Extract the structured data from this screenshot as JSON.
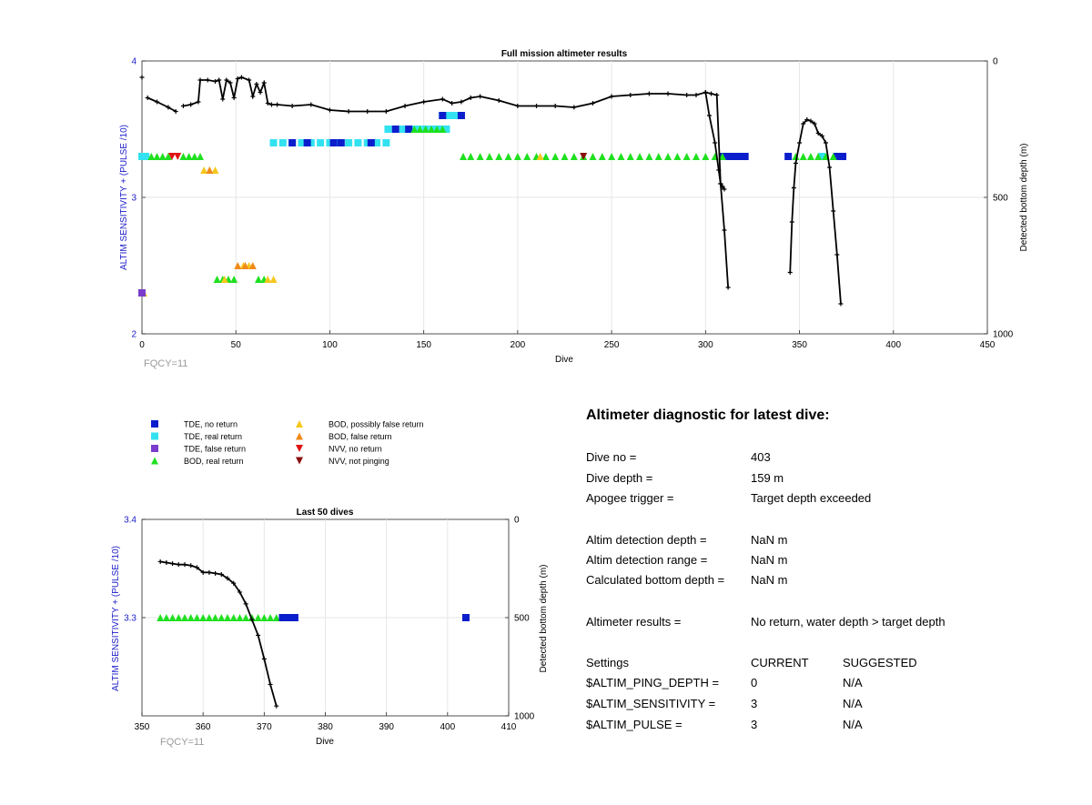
{
  "colors": {
    "tde_no_return": "#0b1ecc",
    "tde_real_return": "#33e2f0",
    "tde_false_return": "#7a3ccc",
    "bod_real_return": "#1fe01f",
    "bod_possibly_false": "#f5c81e",
    "bod_false_return": "#f08a1a",
    "nvv_no_return": "#e01414",
    "nvv_not_pinging": "#8a0f0f",
    "axis_left": "#1a1ac8",
    "line": "#000000",
    "grid": "#e6e6e6",
    "muted": "#9a9a9a"
  },
  "legend": {
    "items": [
      {
        "label": "TDE, no return",
        "marker": "square",
        "color_key": "tde_no_return"
      },
      {
        "label": "TDE, real return",
        "marker": "square",
        "color_key": "tde_real_return"
      },
      {
        "label": "TDE, false return",
        "marker": "square",
        "color_key": "tde_false_return"
      },
      {
        "label": "BOD, real return",
        "marker": "triangle-up",
        "color_key": "bod_real_return"
      },
      {
        "label": "BOD, possibly false return",
        "marker": "triangle-up",
        "color_key": "bod_possibly_false"
      },
      {
        "label": "BOD, false return",
        "marker": "triangle-up",
        "color_key": "bod_false_return"
      },
      {
        "label": "NVV, no return",
        "marker": "triangle-down",
        "color_key": "nvv_no_return"
      },
      {
        "label": "NVV, not pinging",
        "marker": "triangle-down",
        "color_key": "nvv_not_pinging"
      }
    ]
  },
  "diagnostic": {
    "title": "Altimeter diagnostic for latest dive:",
    "rows": [
      {
        "label": "Dive no =",
        "value": "403"
      },
      {
        "label": "Dive depth =",
        "value": "159 m"
      },
      {
        "label": "Apogee trigger =",
        "value": "Target depth exceeded"
      },
      {
        "label": "Altim detection depth =",
        "value": "NaN m"
      },
      {
        "label": "Altim detection range =",
        "value": "NaN m"
      },
      {
        "label": "Calculated bottom depth =",
        "value": "NaN m"
      },
      {
        "label": "Altimeter results =",
        "value": "No return, water depth > target depth"
      }
    ],
    "settings_header": {
      "label": "Settings",
      "current": "CURRENT",
      "suggested": "SUGGESTED"
    },
    "settings": [
      {
        "label": "$ALTIM_PING_DEPTH =",
        "current": "0",
        "suggested": "N/A"
      },
      {
        "label": "$ALTIM_SENSITIVITY =",
        "current": "3",
        "suggested": "N/A"
      },
      {
        "label": "$ALTIM_PULSE =",
        "current": "3",
        "suggested": "N/A"
      }
    ]
  },
  "chart_data": [
    {
      "type": "scatter",
      "title": "Full mission altimeter results",
      "xlabel": "Dive",
      "ylabel": "ALTIM SENSITIVITY + (PULSE /10)",
      "y2label": "Detected bottom depth (m)",
      "xlim": [
        0,
        450
      ],
      "ylim": [
        2,
        4
      ],
      "y2lim": [
        1000,
        0
      ],
      "xticks": [
        0,
        50,
        100,
        150,
        200,
        250,
        300,
        350,
        400,
        450
      ],
      "xtick_labels": [
        "0",
        "50",
        "100",
        "150",
        "200",
        "250",
        "300",
        "350",
        "400",
        "450"
      ],
      "yticks": [
        2,
        3,
        4
      ],
      "ytick_labels": [
        "2",
        "3",
        "4"
      ],
      "y2ticks": [
        0,
        500,
        1000
      ],
      "y2tick_labels": [
        "0",
        "500",
        "1000"
      ],
      "grid": true,
      "note": "FQCY=11",
      "bottom_depth": [
        {
          "x": [
            0
          ],
          "y": [
            60
          ]
        },
        {
          "x": [
            3,
            8,
            14,
            18
          ],
          "y": [
            135,
            150,
            170,
            185
          ]
        },
        {
          "x": [
            22,
            26,
            30,
            31,
            35,
            39,
            41,
            43,
            45,
            47,
            49,
            51,
            53,
            57,
            59,
            61,
            63,
            65,
            67,
            69,
            72,
            80,
            90,
            100,
            110,
            120,
            130,
            140,
            150,
            160,
            165,
            170,
            175,
            180,
            190,
            200,
            210,
            220,
            230,
            240,
            250,
            260,
            270,
            280,
            290,
            295,
            300,
            303,
            306,
            308,
            310,
            312
          ],
          "y": [
            165,
            160,
            150,
            70,
            70,
            75,
            70,
            140,
            70,
            80,
            135,
            65,
            60,
            70,
            130,
            85,
            115,
            80,
            155,
            160,
            160,
            165,
            160,
            180,
            185,
            185,
            185,
            165,
            150,
            140,
            155,
            150,
            135,
            130,
            145,
            165,
            165,
            165,
            170,
            155,
            130,
            125,
            120,
            120,
            125,
            125,
            115,
            120,
            125,
            450,
            620,
            830
          ]
        },
        {
          "x": [
            300,
            302,
            305,
            307,
            308,
            309,
            310
          ],
          "y": [
            115,
            200,
            300,
            400,
            450,
            460,
            470
          ]
        },
        {
          "x": [
            345,
            346,
            347,
            348,
            350,
            352,
            354,
            356,
            358,
            360,
            362,
            364,
            366,
            368,
            370,
            372
          ],
          "y": [
            775,
            590,
            465,
            375,
            300,
            230,
            215,
            220,
            230,
            265,
            275,
            300,
            390,
            550,
            710,
            890
          ]
        }
      ],
      "markers": [
        {
          "kind": "tde_real_return",
          "x": [
            0,
            1,
            2
          ],
          "y": 3.3
        },
        {
          "kind": "tde_real_return",
          "x": [
            70,
            75,
            80,
            85,
            90,
            95,
            100,
            105,
            110,
            115,
            120,
            125,
            130
          ],
          "y": 3.4
        },
        {
          "kind": "tde_no_return",
          "x": [
            80,
            88,
            102,
            106,
            122
          ],
          "y": 3.4
        },
        {
          "kind": "tde_real_return",
          "x": [
            131,
            135,
            139,
            143,
            147,
            151,
            155,
            159,
            162
          ],
          "y": 3.5
        },
        {
          "kind": "tde_no_return",
          "x": [
            135,
            142
          ],
          "y": 3.5
        },
        {
          "kind": "tde_real_return",
          "x": [
            160,
            163,
            166,
            169
          ],
          "y": 3.6
        },
        {
          "kind": "tde_no_return",
          "x": [
            160,
            170
          ],
          "y": 3.6
        },
        {
          "kind": "tde_real_return",
          "x": [
            362
          ],
          "y": 3.3
        },
        {
          "kind": "tde_no_return",
          "x": [
            309,
            312,
            315,
            318,
            321,
            344,
            370,
            373
          ],
          "y": 3.3
        },
        {
          "kind": "bod_real_return",
          "x": [
            5,
            8,
            11,
            14,
            22,
            25,
            28,
            31
          ],
          "y": 3.3
        },
        {
          "kind": "bod_real_return",
          "x": [
            145,
            148,
            151,
            154,
            157,
            160
          ],
          "y": 3.5
        },
        {
          "kind": "bod_real_return",
          "x": [
            171,
            175,
            180,
            185,
            190,
            195,
            200,
            205,
            210,
            215,
            220,
            225,
            230,
            235,
            240,
            245,
            250,
            255,
            260,
            265,
            270,
            275,
            280,
            285,
            290,
            295,
            300,
            305,
            309
          ],
          "y": 3.3
        },
        {
          "kind": "bod_real_return",
          "x": [
            348,
            352,
            356,
            360,
            364,
            368
          ],
          "y": 3.3
        },
        {
          "kind": "bod_real_return",
          "x": [
            40,
            43,
            46,
            49,
            62,
            65
          ],
          "y": 2.4
        },
        {
          "kind": "bod_possibly_false",
          "x": [
            1
          ],
          "y": 2.3
        },
        {
          "kind": "bod_possibly_false",
          "x": [
            33,
            36,
            39
          ],
          "y": 3.2
        },
        {
          "kind": "bod_possibly_false",
          "x": [
            44,
            67,
            70
          ],
          "y": 2.4
        },
        {
          "kind": "bod_possibly_false",
          "x": [
            54,
            57
          ],
          "y": 2.5
        },
        {
          "kind": "bod_possibly_false",
          "x": [
            212
          ],
          "y": 3.3
        },
        {
          "kind": "bod_false_return",
          "x": [
            51,
            55,
            59
          ],
          "y": 2.5
        },
        {
          "kind": "bod_false_return",
          "x": [
            36
          ],
          "y": 3.2
        },
        {
          "kind": "nvv_no_return",
          "x": [
            16,
            19
          ],
          "y": 3.3
        },
        {
          "kind": "nvv_not_pinging",
          "x": [
            235
          ],
          "y": 3.3
        },
        {
          "kind": "tde_false_return",
          "x": [
            0
          ],
          "y": 2.3
        }
      ]
    },
    {
      "type": "scatter",
      "title": "Last 50 dives",
      "xlabel": "Dive",
      "ylabel": "ALTIM SENSITIVITY + (PULSE /10)",
      "y2label": "Detected bottom depth (m)",
      "xlim": [
        350,
        410
      ],
      "ylim": [
        3.2,
        3.4
      ],
      "y2lim": [
        1000,
        0
      ],
      "xticks": [
        350,
        360,
        370,
        380,
        390,
        400,
        410
      ],
      "xtick_labels": [
        "350",
        "360",
        "370",
        "380",
        "390",
        "400",
        "410"
      ],
      "yticks": [
        3.3,
        3.4
      ],
      "ytick_labels": [
        "3.3",
        "3.4"
      ],
      "y2ticks": [
        0,
        500,
        1000
      ],
      "y2tick_labels": [
        "0",
        "500",
        "1000"
      ],
      "grid": true,
      "note": "FQCY=11",
      "bottom_depth": [
        {
          "x": [
            353,
            354,
            355,
            356,
            357,
            358,
            359,
            360,
            361,
            362,
            363,
            364,
            365,
            366,
            367,
            368,
            369,
            370,
            371,
            372
          ],
          "y": [
            215,
            220,
            225,
            230,
            230,
            235,
            245,
            270,
            270,
            275,
            280,
            300,
            325,
            370,
            430,
            510,
            590,
            710,
            840,
            950
          ]
        }
      ],
      "markers": [
        {
          "kind": "bod_real_return",
          "x": [
            353,
            354,
            355,
            356,
            357,
            358,
            359,
            360,
            361,
            362,
            363,
            364,
            365,
            366,
            367,
            368,
            369,
            370,
            371,
            372
          ],
          "y": 3.3
        },
        {
          "kind": "tde_no_return",
          "x": [
            373,
            374,
            375,
            403
          ],
          "y": 3.3
        }
      ]
    }
  ]
}
